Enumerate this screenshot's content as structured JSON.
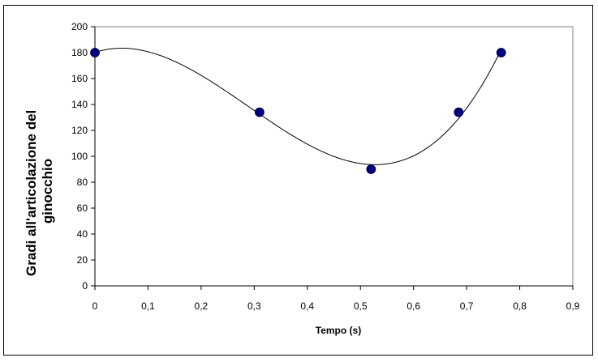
{
  "chart_data": {
    "type": "scatter",
    "title": "",
    "xlabel": "Tempo (s)",
    "ylabel_lines": [
      "Gradi all'articolazione del",
      "ginocchio"
    ],
    "xlim": [
      0,
      0.9
    ],
    "ylim": [
      0,
      200
    ],
    "x_ticks": [
      0,
      0.1,
      0.2,
      0.3,
      0.4,
      0.5,
      0.6,
      0.7,
      0.8,
      0.9
    ],
    "x_tick_labels": [
      "0",
      "0,1",
      "0,2",
      "0,3",
      "0,4",
      "0,5",
      "0,6",
      "0,7",
      "0,8",
      "0,9"
    ],
    "y_ticks": [
      0,
      20,
      40,
      60,
      80,
      100,
      120,
      140,
      160,
      180,
      200
    ],
    "y_tick_labels": [
      "0",
      "20",
      "40",
      "60",
      "80",
      "100",
      "120",
      "140",
      "160",
      "180",
      "200"
    ],
    "grid": false,
    "series": [
      {
        "points": [
          {
            "x": 0.0,
            "y": 180
          },
          {
            "x": 0.31,
            "y": 134
          },
          {
            "x": 0.52,
            "y": 90
          },
          {
            "x": 0.685,
            "y": 134
          },
          {
            "x": 0.765,
            "y": 180
          }
        ],
        "marker_color": "#000080",
        "trendline": "polynomial",
        "trendline_color": "#000000"
      }
    ]
  }
}
